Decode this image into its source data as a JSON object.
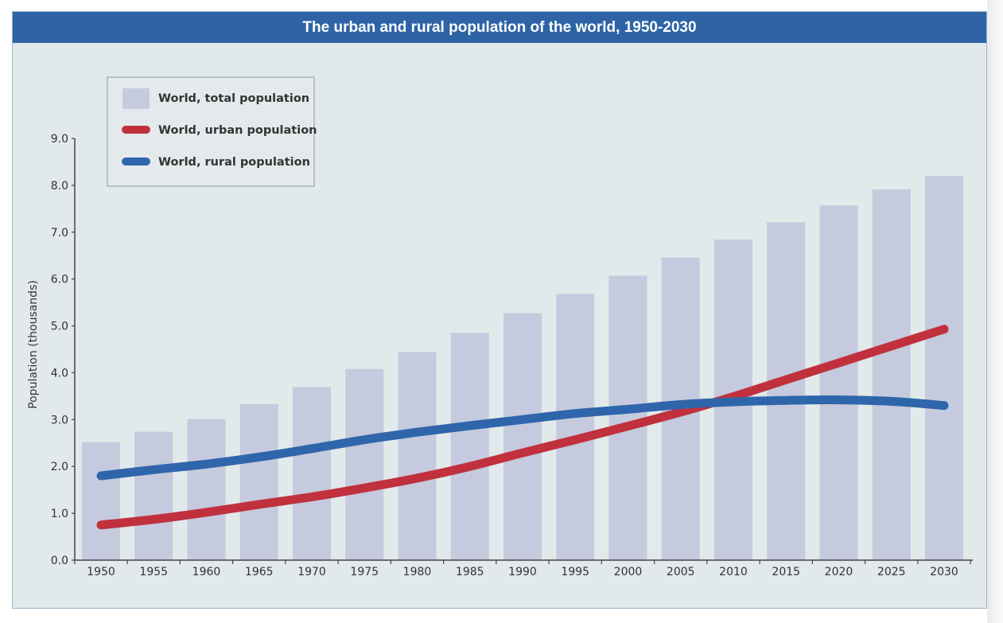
{
  "chart_data": {
    "type": "bar+line",
    "title": "The urban and rural population of the world, 1950-2030",
    "xlabel": "",
    "ylabel": "Population (thousands)",
    "ylim": [
      0,
      9
    ],
    "yticks": [
      "0.0",
      "1.0",
      "2.0",
      "3.0",
      "4.0",
      "5.0",
      "6.0",
      "7.0",
      "8.0",
      "9.0"
    ],
    "categories": [
      "1950",
      "1955",
      "1960",
      "1965",
      "1970",
      "1975",
      "1980",
      "1985",
      "1990",
      "1995",
      "2000",
      "2005",
      "2010",
      "2015",
      "2020",
      "2025",
      "2030"
    ],
    "grid": false,
    "legend_position": "top-left",
    "series": [
      {
        "name": "World, total population",
        "kind": "bar",
        "color": "#c5cade",
        "values": [
          2.52,
          2.74,
          3.01,
          3.33,
          3.69,
          4.08,
          4.44,
          4.85,
          5.27,
          5.68,
          6.07,
          6.46,
          6.84,
          7.21,
          7.57,
          7.91,
          8.2
        ]
      },
      {
        "name": "World, urban population",
        "kind": "line",
        "color": "#c0313d",
        "values": [
          0.75,
          0.87,
          1.02,
          1.19,
          1.35,
          1.54,
          1.75,
          2.0,
          2.29,
          2.57,
          2.86,
          3.16,
          3.49,
          3.85,
          4.21,
          4.57,
          4.93
        ]
      },
      {
        "name": "World, rural population",
        "kind": "line",
        "color": "#2f65ab",
        "values": [
          1.8,
          1.93,
          2.05,
          2.2,
          2.38,
          2.57,
          2.73,
          2.87,
          3.0,
          3.13,
          3.22,
          3.32,
          3.38,
          3.41,
          3.42,
          3.39,
          3.3
        ]
      }
    ]
  }
}
